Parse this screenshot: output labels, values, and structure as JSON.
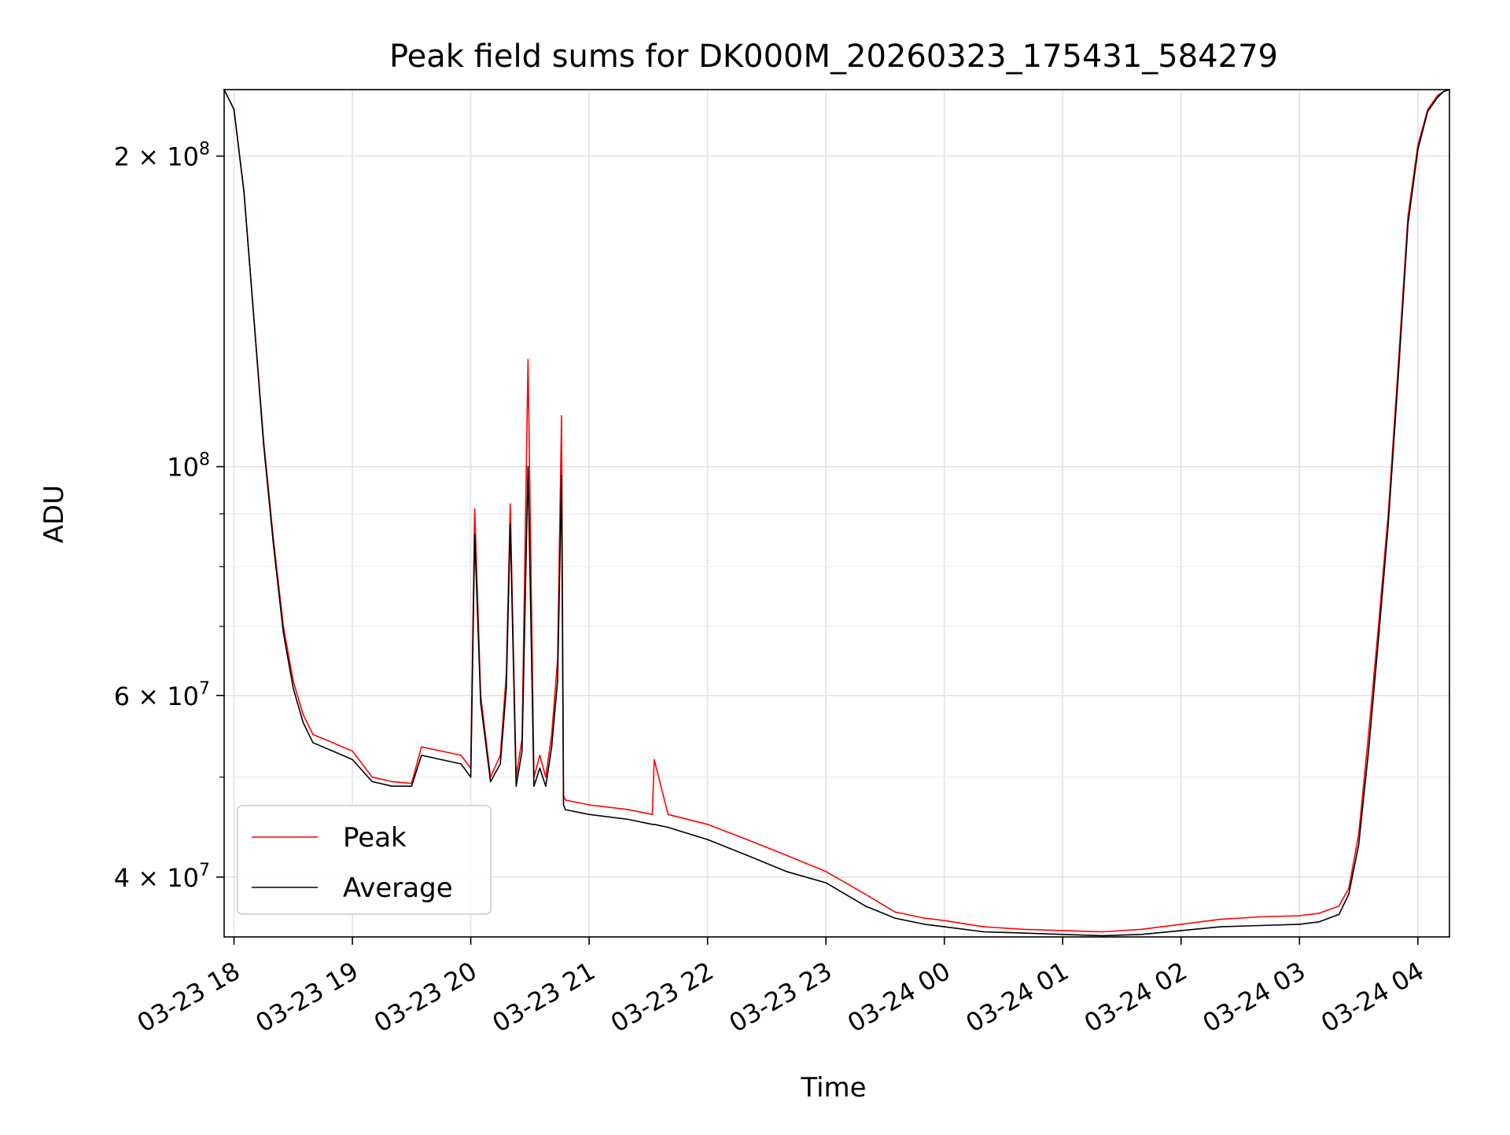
{
  "chart_data": {
    "type": "line",
    "title": "Peak field sums for DK000M_20260323_175431_584279",
    "xlabel": "Time",
    "ylabel": "ADU",
    "yscale": "log",
    "ylim": [
      35000000,
      232000000
    ],
    "xlim": [
      "2026-03-23 17:55",
      "2026-03-24 04:16"
    ],
    "grid": true,
    "legend_position": "lower-left",
    "x_ticks": [
      {
        "t": "2026-03-23 18:00",
        "label": "03-23 18"
      },
      {
        "t": "2026-03-23 19:00",
        "label": "03-23 19"
      },
      {
        "t": "2026-03-23 20:00",
        "label": "03-23 20"
      },
      {
        "t": "2026-03-23 21:00",
        "label": "03-23 21"
      },
      {
        "t": "2026-03-23 22:00",
        "label": "03-23 22"
      },
      {
        "t": "2026-03-23 23:00",
        "label": "03-23 23"
      },
      {
        "t": "2026-03-24 00:00",
        "label": "03-24 00"
      },
      {
        "t": "2026-03-24 01:00",
        "label": "03-24 01"
      },
      {
        "t": "2026-03-24 02:00",
        "label": "03-24 02"
      },
      {
        "t": "2026-03-24 03:00",
        "label": "03-24 03"
      },
      {
        "t": "2026-03-24 04:00",
        "label": "03-24 04"
      }
    ],
    "y_ticks": [
      {
        "value": 40000000,
        "mantissa": "4",
        "exp": "7"
      },
      {
        "value": 60000000,
        "mantissa": "6",
        "exp": "7"
      },
      {
        "value": 100000000,
        "mantissa": "",
        "exp": "8"
      },
      {
        "value": 200000000,
        "mantissa": "2",
        "exp": "8"
      }
    ],
    "y_minor_ticks": [
      50000000,
      70000000,
      80000000,
      90000000
    ],
    "series": [
      {
        "name": "Peak",
        "color": "#ff0000",
        "x": [
          "2026-03-23 17:55",
          "2026-03-23 18:00",
          "2026-03-23 18:05",
          "2026-03-23 18:10",
          "2026-03-23 18:15",
          "2026-03-23 18:20",
          "2026-03-23 18:25",
          "2026-03-23 18:30",
          "2026-03-23 18:35",
          "2026-03-23 18:40",
          "2026-03-23 18:45",
          "2026-03-23 18:50",
          "2026-03-23 18:55",
          "2026-03-23 19:00",
          "2026-03-23 19:10",
          "2026-03-23 19:20",
          "2026-03-23 19:30",
          "2026-03-23 19:35",
          "2026-03-23 19:45",
          "2026-03-23 19:55",
          "2026-03-23 20:00",
          "2026-03-23 20:02",
          "2026-03-23 20:05",
          "2026-03-23 20:10",
          "2026-03-23 20:15",
          "2026-03-23 20:18",
          "2026-03-23 20:20",
          "2026-03-23 20:23",
          "2026-03-23 20:26",
          "2026-03-23 20:29",
          "2026-03-23 20:32",
          "2026-03-23 20:35",
          "2026-03-23 20:38",
          "2026-03-23 20:41",
          "2026-03-23 20:44",
          "2026-03-23 20:46",
          "2026-03-23 20:47",
          "2026-03-23 20:48",
          "2026-03-23 21:00",
          "2026-03-23 21:20",
          "2026-03-23 21:32",
          "2026-03-23 21:33",
          "2026-03-23 21:40",
          "2026-03-23 22:00",
          "2026-03-23 22:20",
          "2026-03-23 22:40",
          "2026-03-23 23:00",
          "2026-03-23 23:20",
          "2026-03-23 23:35",
          "2026-03-23 23:50",
          "2026-03-24 00:00",
          "2026-03-24 00:20",
          "2026-03-24 00:40",
          "2026-03-24 01:00",
          "2026-03-24 01:20",
          "2026-03-24 01:40",
          "2026-03-24 02:00",
          "2026-03-24 02:20",
          "2026-03-24 02:40",
          "2026-03-24 03:00",
          "2026-03-24 03:10",
          "2026-03-24 03:20",
          "2026-03-24 03:25",
          "2026-03-24 03:30",
          "2026-03-24 03:35",
          "2026-03-24 03:40",
          "2026-03-24 03:45",
          "2026-03-24 03:50",
          "2026-03-24 03:55",
          "2026-03-24 04:00",
          "2026-03-24 04:05",
          "2026-03-24 04:10",
          "2026-03-24 04:13",
          "2026-03-24 04:16"
        ],
        "values": [
          232000000,
          222000000,
          185000000,
          140000000,
          106000000,
          85000000,
          70000000,
          62000000,
          57500000,
          55000000,
          54500000,
          54000000,
          53500000,
          53000000,
          50000000,
          49500000,
          49300000,
          53500000,
          53000000,
          52500000,
          51000000,
          91000000,
          60000000,
          50000000,
          52500000,
          63000000,
          92000000,
          50000000,
          54500000,
          127000000,
          50000000,
          52500000,
          50000000,
          55000000,
          65000000,
          112000000,
          48000000,
          47500000,
          47000000,
          46500000,
          46000000,
          52000000,
          46000000,
          45000000,
          43500000,
          42000000,
          40500000,
          38500000,
          37000000,
          36500000,
          36300000,
          35800000,
          35600000,
          35500000,
          35400000,
          35600000,
          36000000,
          36400000,
          36600000,
          36700000,
          36900000,
          37500000,
          39000000,
          44000000,
          55000000,
          70000000,
          90000000,
          125000000,
          175000000,
          205000000,
          222000000,
          229000000,
          231000000,
          232000000
        ]
      },
      {
        "name": "Average",
        "color": "#000000",
        "x": [
          "2026-03-23 17:55",
          "2026-03-23 18:00",
          "2026-03-23 18:05",
          "2026-03-23 18:10",
          "2026-03-23 18:15",
          "2026-03-23 18:20",
          "2026-03-23 18:25",
          "2026-03-23 18:30",
          "2026-03-23 18:35",
          "2026-03-23 18:40",
          "2026-03-23 18:45",
          "2026-03-23 18:50",
          "2026-03-23 18:55",
          "2026-03-23 19:00",
          "2026-03-23 19:10",
          "2026-03-23 19:20",
          "2026-03-23 19:30",
          "2026-03-23 19:35",
          "2026-03-23 19:45",
          "2026-03-23 19:55",
          "2026-03-23 20:00",
          "2026-03-23 20:02",
          "2026-03-23 20:05",
          "2026-03-23 20:10",
          "2026-03-23 20:15",
          "2026-03-23 20:18",
          "2026-03-23 20:20",
          "2026-03-23 20:23",
          "2026-03-23 20:26",
          "2026-03-23 20:29",
          "2026-03-23 20:32",
          "2026-03-23 20:35",
          "2026-03-23 20:38",
          "2026-03-23 20:41",
          "2026-03-23 20:44",
          "2026-03-23 20:46",
          "2026-03-23 20:47",
          "2026-03-23 20:48",
          "2026-03-23 21:00",
          "2026-03-23 21:20",
          "2026-03-23 21:32",
          "2026-03-23 21:33",
          "2026-03-23 21:40",
          "2026-03-23 22:00",
          "2026-03-23 22:20",
          "2026-03-23 22:40",
          "2026-03-23 23:00",
          "2026-03-23 23:20",
          "2026-03-23 23:35",
          "2026-03-23 23:50",
          "2026-03-24 00:00",
          "2026-03-24 00:20",
          "2026-03-24 00:40",
          "2026-03-24 01:00",
          "2026-03-24 01:20",
          "2026-03-24 01:40",
          "2026-03-24 02:00",
          "2026-03-24 02:20",
          "2026-03-24 02:40",
          "2026-03-24 03:00",
          "2026-03-24 03:10",
          "2026-03-24 03:20",
          "2026-03-24 03:25",
          "2026-03-24 03:30",
          "2026-03-24 03:35",
          "2026-03-24 03:40",
          "2026-03-24 03:45",
          "2026-03-24 03:50",
          "2026-03-24 03:55",
          "2026-03-24 04:00",
          "2026-03-24 04:05",
          "2026-03-24 04:10",
          "2026-03-24 04:13",
          "2026-03-24 04:16"
        ],
        "values": [
          232000000,
          222000000,
          185000000,
          140000000,
          105000000,
          84000000,
          69000000,
          61000000,
          56500000,
          54000000,
          53500000,
          53000000,
          52500000,
          52000000,
          49500000,
          49000000,
          49000000,
          52500000,
          52000000,
          51500000,
          50000000,
          86000000,
          59000000,
          49500000,
          51500000,
          61000000,
          88000000,
          49000000,
          53000000,
          100000000,
          49000000,
          51000000,
          49000000,
          53500000,
          62000000,
          98000000,
          47000000,
          46500000,
          46000000,
          45500000,
          45000000,
          45000000,
          44700000,
          43500000,
          42000000,
          40500000,
          39500000,
          37500000,
          36500000,
          36000000,
          35800000,
          35400000,
          35300000,
          35200000,
          35100000,
          35200000,
          35500000,
          35800000,
          35900000,
          36000000,
          36200000,
          36800000,
          38500000,
          43000000,
          53000000,
          68000000,
          88000000,
          122000000,
          172000000,
          203000000,
          221000000,
          228000000,
          231000000,
          232000000
        ]
      }
    ]
  }
}
